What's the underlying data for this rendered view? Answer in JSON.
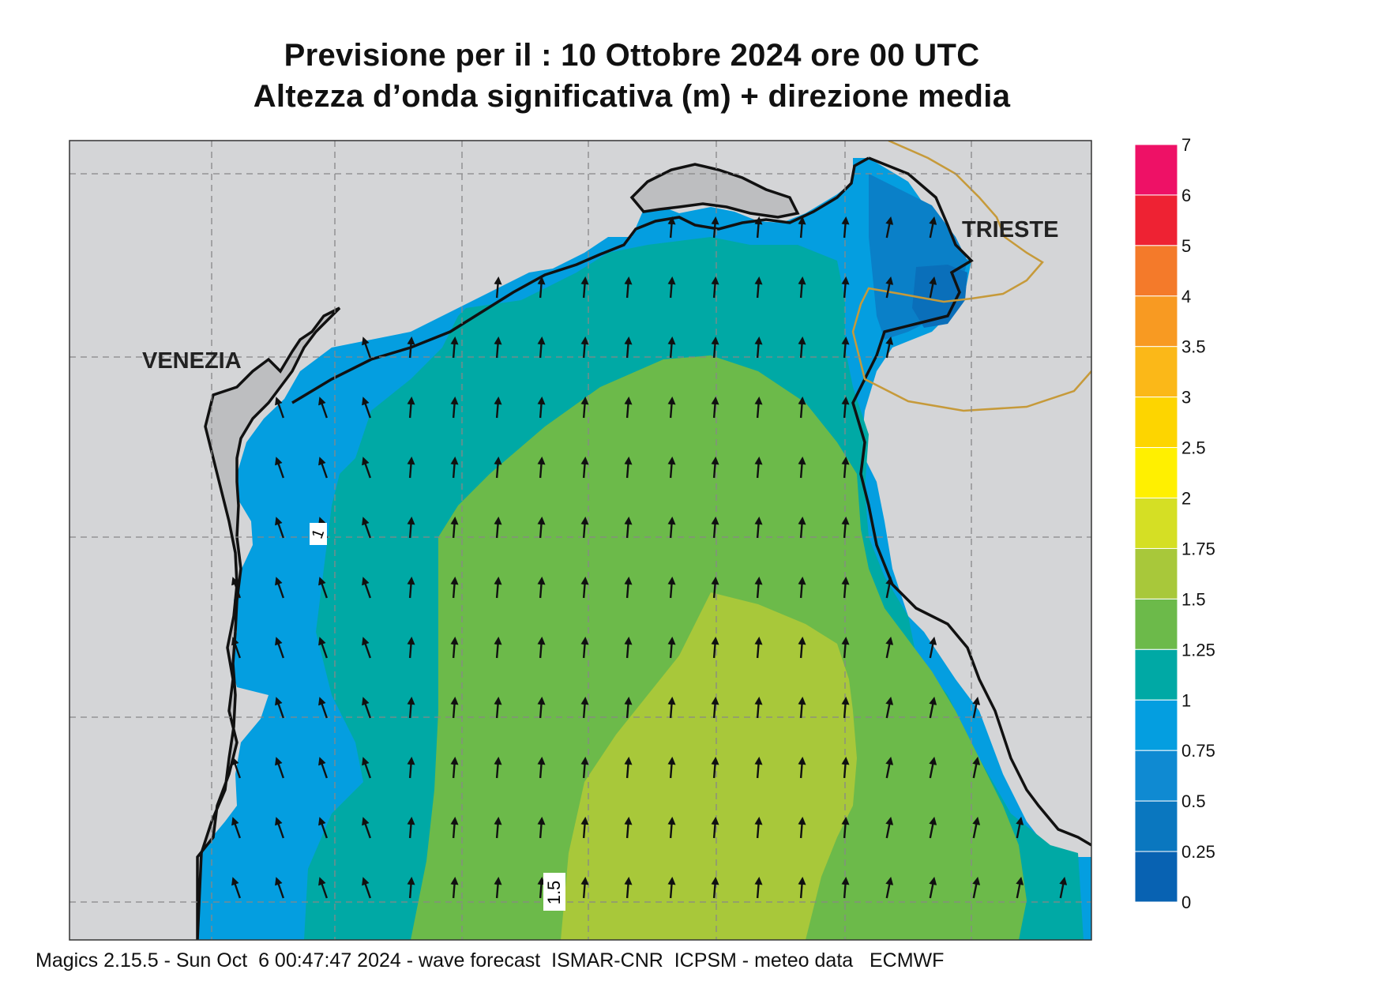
{
  "title_line1": "Previsione per il  :  10  Ottobre  2024   ore 00 UTC",
  "title_line2": "Altezza d’onda significativa (m) + direzione media",
  "cities": [
    "VENEZIA",
    "TRIESTE"
  ],
  "contour_labels": [
    "1",
    "1.5"
  ],
  "legend": {
    "labels": [
      "7",
      "6",
      "5",
      "4",
      "3.5",
      "3",
      "2.5",
      "2",
      "1.75",
      "1.5",
      "1.25",
      "1",
      "0.75",
      "0.5",
      "0.25",
      "0"
    ],
    "colors": [
      "#ee1166",
      "#ee2233",
      "#f47a2a",
      "#f89a22",
      "#fbb818",
      "#fdd500",
      "#fff000",
      "#d5df24",
      "#a8c83a",
      "#6cba4a",
      "#00a9a5",
      "#049ee0",
      "#0f8ad2",
      "#0a77bf",
      "#0862b2"
    ]
  },
  "footer": "Magics 2.15.5 - Sun Oct  6 00:47:47 2024 - wave forecast  ISMAR-CNR  ICPSM - meteo data   ECMWF"
}
